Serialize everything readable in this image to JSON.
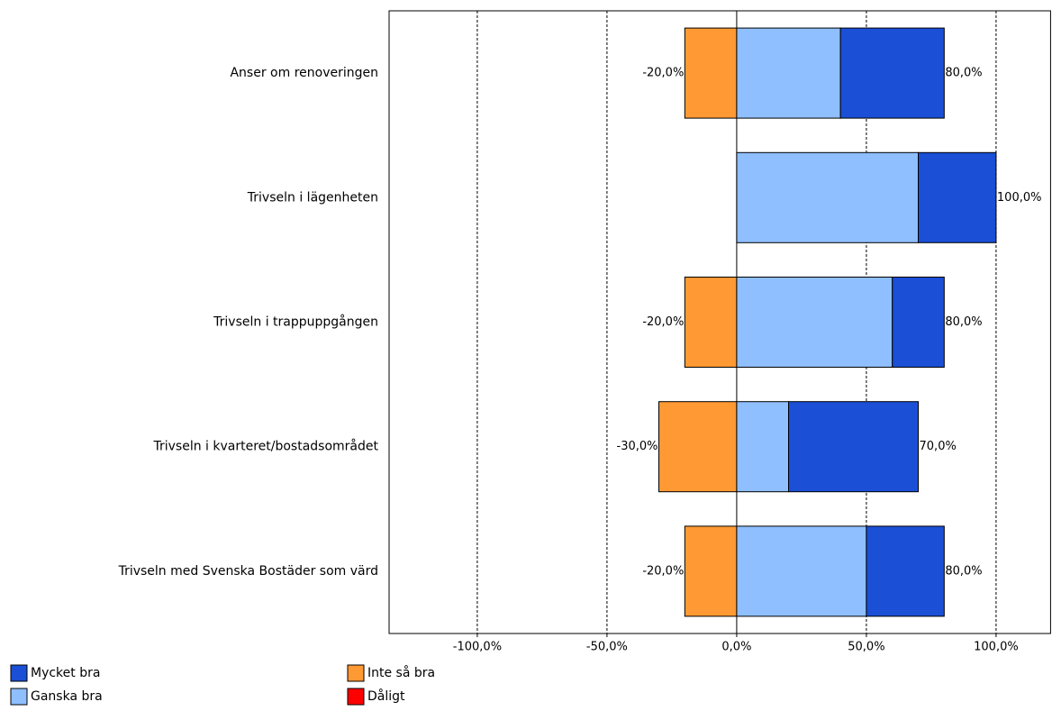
{
  "chart_data": {
    "type": "diverging-bar",
    "categories": [
      "Anser om renoveringen",
      "Trivseln i lägenheten",
      "Trivseln i trappuppgången",
      "Trivseln i kvarteret/bostadsområdet",
      "Trivseln med Svenska Bostäder som värd"
    ],
    "series": [
      {
        "name": "Mycket bra",
        "color": "#1a4fd6",
        "values": [
          40,
          30,
          20,
          50,
          30
        ]
      },
      {
        "name": "Ganska bra",
        "color": "#8fbfff",
        "values": [
          40,
          70,
          60,
          20,
          50
        ]
      },
      {
        "name": "Inte så bra",
        "color": "#ff9933",
        "values": [
          -20,
          0,
          -20,
          -30,
          -20
        ]
      },
      {
        "name": "Dåligt",
        "color": "#ff0000",
        "values": [
          0,
          0,
          0,
          0,
          0
        ]
      }
    ],
    "net_labels": {
      "negative": {
        "values": [
          -20,
          null,
          -20,
          -30,
          -20
        ],
        "value_labels": [
          "-20,0%",
          null,
          "-20,0%",
          "-30,0%",
          "-20,0%"
        ]
      },
      "positive": {
        "values": [
          80,
          100,
          80,
          70,
          80
        ],
        "value_labels": [
          "80,0%",
          "100,0%",
          "80,0%",
          "70,0%",
          "80,0%"
        ]
      }
    },
    "xlim": [
      -134,
      121
    ],
    "xticks": [
      {
        "value": -100,
        "label": "-100,0%"
      },
      {
        "value": -50,
        "label": "-50,0%"
      },
      {
        "value": 0,
        "label": "0,0%"
      },
      {
        "value": 50,
        "label": "50,0%"
      },
      {
        "value": 100,
        "label": "100,0%"
      }
    ],
    "grid": true
  }
}
